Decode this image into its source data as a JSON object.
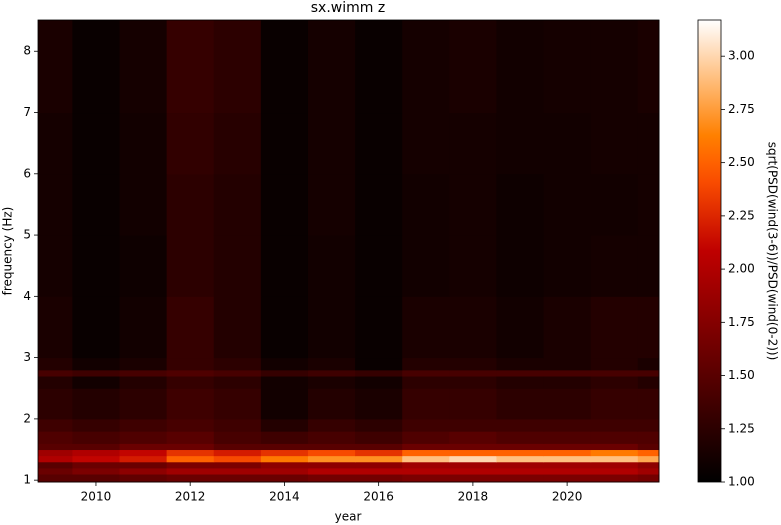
{
  "chart_data": {
    "type": "heatmap",
    "title": "sx.wimm z",
    "x_label": "year",
    "y_label": "frequency (Hz)",
    "colorbar_label": "sqrt(PSD(wind(3-6))/PSD(wind(0-2)))",
    "colormap": "gist_heat",
    "x_edges": [
      2008.77,
      2009.5,
      2010.5,
      2011.5,
      2012.5,
      2013.5,
      2014.5,
      2015.5,
      2016.5,
      2017.5,
      2018.5,
      2019.5,
      2020.5,
      2021.5,
      2021.95
    ],
    "y_edges": [
      0.97,
      1.1,
      1.2,
      1.3,
      1.4,
      1.5,
      1.6,
      1.8,
      2.0,
      2.5,
      2.7,
      2.8,
      3.0,
      4.0,
      5.0,
      6.0,
      7.0,
      8.51
    ],
    "z": [
      [
        1.5,
        1.5,
        1.55,
        1.6,
        1.6,
        1.6,
        1.65,
        1.65,
        1.7,
        1.7,
        1.7,
        1.7,
        1.7,
        1.65
      ],
      [
        1.6,
        1.7,
        1.8,
        1.9,
        1.9,
        1.9,
        2.0,
        2.0,
        2.0,
        2.0,
        2.0,
        2.0,
        2.0,
        1.9
      ],
      [
        1.5,
        1.6,
        1.6,
        1.7,
        1.7,
        1.8,
        1.8,
        1.8,
        1.9,
        1.9,
        1.9,
        1.9,
        1.9,
        1.8
      ],
      [
        2.0,
        2.1,
        2.2,
        2.5,
        2.4,
        2.6,
        2.7,
        2.7,
        2.9,
        3.0,
        2.9,
        2.9,
        2.9,
        2.8
      ],
      [
        1.9,
        2.0,
        2.1,
        2.3,
        2.2,
        2.3,
        2.4,
        2.3,
        2.5,
        2.5,
        2.5,
        2.5,
        2.6,
        2.5
      ],
      [
        1.5,
        1.5,
        1.6,
        1.6,
        1.5,
        1.5,
        1.5,
        1.5,
        1.6,
        1.6,
        1.6,
        1.6,
        1.6,
        1.5
      ],
      [
        1.45,
        1.4,
        1.45,
        1.5,
        1.4,
        1.35,
        1.4,
        1.35,
        1.45,
        1.5,
        1.45,
        1.45,
        1.45,
        1.45
      ],
      [
        1.35,
        1.3,
        1.35,
        1.4,
        1.35,
        1.2,
        1.3,
        1.25,
        1.35,
        1.35,
        1.35,
        1.35,
        1.35,
        1.35
      ],
      [
        1.25,
        1.2,
        1.25,
        1.35,
        1.3,
        1.1,
        1.2,
        1.15,
        1.3,
        1.3,
        1.25,
        1.25,
        1.3,
        1.3
      ],
      [
        1.2,
        1.1,
        1.2,
        1.3,
        1.25,
        1.1,
        1.15,
        1.1,
        1.25,
        1.25,
        1.2,
        1.2,
        1.25,
        1.2
      ],
      [
        1.4,
        1.35,
        1.4,
        1.45,
        1.4,
        1.3,
        1.35,
        1.3,
        1.4,
        1.4,
        1.4,
        1.4,
        1.4,
        1.4
      ],
      [
        1.2,
        1.1,
        1.15,
        1.3,
        1.25,
        1.1,
        1.15,
        1.05,
        1.2,
        1.2,
        1.15,
        1.15,
        1.2,
        1.15
      ],
      [
        1.15,
        1.05,
        1.1,
        1.3,
        1.2,
        1.05,
        1.1,
        1.05,
        1.15,
        1.15,
        1.1,
        1.15,
        1.2,
        1.2
      ],
      [
        1.12,
        1.05,
        1.08,
        1.25,
        1.2,
        1.05,
        1.1,
        1.05,
        1.1,
        1.12,
        1.08,
        1.1,
        1.12,
        1.12
      ],
      [
        1.12,
        1.05,
        1.1,
        1.25,
        1.2,
        1.05,
        1.12,
        1.05,
        1.1,
        1.12,
        1.08,
        1.1,
        1.1,
        1.12
      ],
      [
        1.12,
        1.05,
        1.1,
        1.28,
        1.22,
        1.05,
        1.12,
        1.05,
        1.12,
        1.12,
        1.1,
        1.1,
        1.12,
        1.12
      ],
      [
        1.15,
        1.05,
        1.12,
        1.3,
        1.25,
        1.05,
        1.12,
        1.05,
        1.12,
        1.15,
        1.1,
        1.12,
        1.12,
        1.15
      ]
    ],
    "xlim": [
      2008.77,
      2021.95
    ],
    "ylim": [
      0.97,
      8.51
    ],
    "xticks": [
      2010,
      2012,
      2014,
      2016,
      2018,
      2020
    ],
    "yticks": [
      1,
      2,
      3,
      4,
      5,
      6,
      7,
      8
    ],
    "clim": [
      1.0,
      3.17
    ],
    "cticks": [
      {
        "value": 1.0,
        "label": "1.00"
      },
      {
        "value": 1.25,
        "label": "1.25"
      },
      {
        "value": 1.5,
        "label": "1.50"
      },
      {
        "value": 1.75,
        "label": "1.75"
      },
      {
        "value": 2.0,
        "label": "2.00"
      },
      {
        "value": 2.25,
        "label": "2.25"
      },
      {
        "value": 2.5,
        "label": "2.50"
      },
      {
        "value": 2.75,
        "label": "2.75"
      },
      {
        "value": 3.0,
        "label": "3.00"
      }
    ]
  }
}
